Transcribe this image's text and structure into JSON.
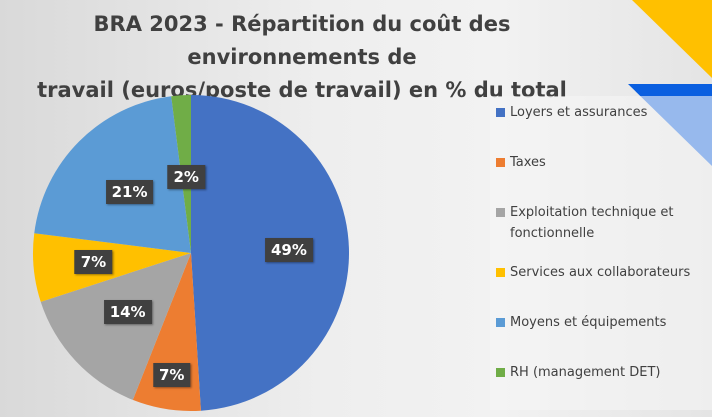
{
  "chart_data": {
    "type": "pie",
    "title": "BRA 2023 - Répartition du coût des environnements de travail (euros/poste de travail) en % du total",
    "title_lines": [
      "BRA 2023 - Répartition du coût des environnements de",
      "travail (euros/poste de travail) en % du total"
    ],
    "legend_position": "right",
    "slices": [
      {
        "label": "Loyers et assurances",
        "value": 49,
        "data_label": "49%",
        "color": "#4472C4"
      },
      {
        "label": "Taxes",
        "value": 7,
        "data_label": "7%",
        "color": "#ED7D31"
      },
      {
        "label": "Exploitation technique et fonctionnelle",
        "label_lines": [
          "Exploitation technique et",
          "fonctionnelle"
        ],
        "value": 14,
        "data_label": "14%",
        "color": "#A5A5A5"
      },
      {
        "label": "Services aux collaborateurs",
        "value": 7,
        "data_label": "7%",
        "color": "#FFC000"
      },
      {
        "label": "Moyens et équipements",
        "value": 21,
        "data_label": "21%",
        "color": "#5B9BD5"
      },
      {
        "label": "RH (management DET)",
        "value": 2,
        "data_label": "2%",
        "color": "#70AD47"
      }
    ]
  },
  "decoration": {
    "yellow": "#FFC000",
    "blue": "#0A5FE0"
  }
}
